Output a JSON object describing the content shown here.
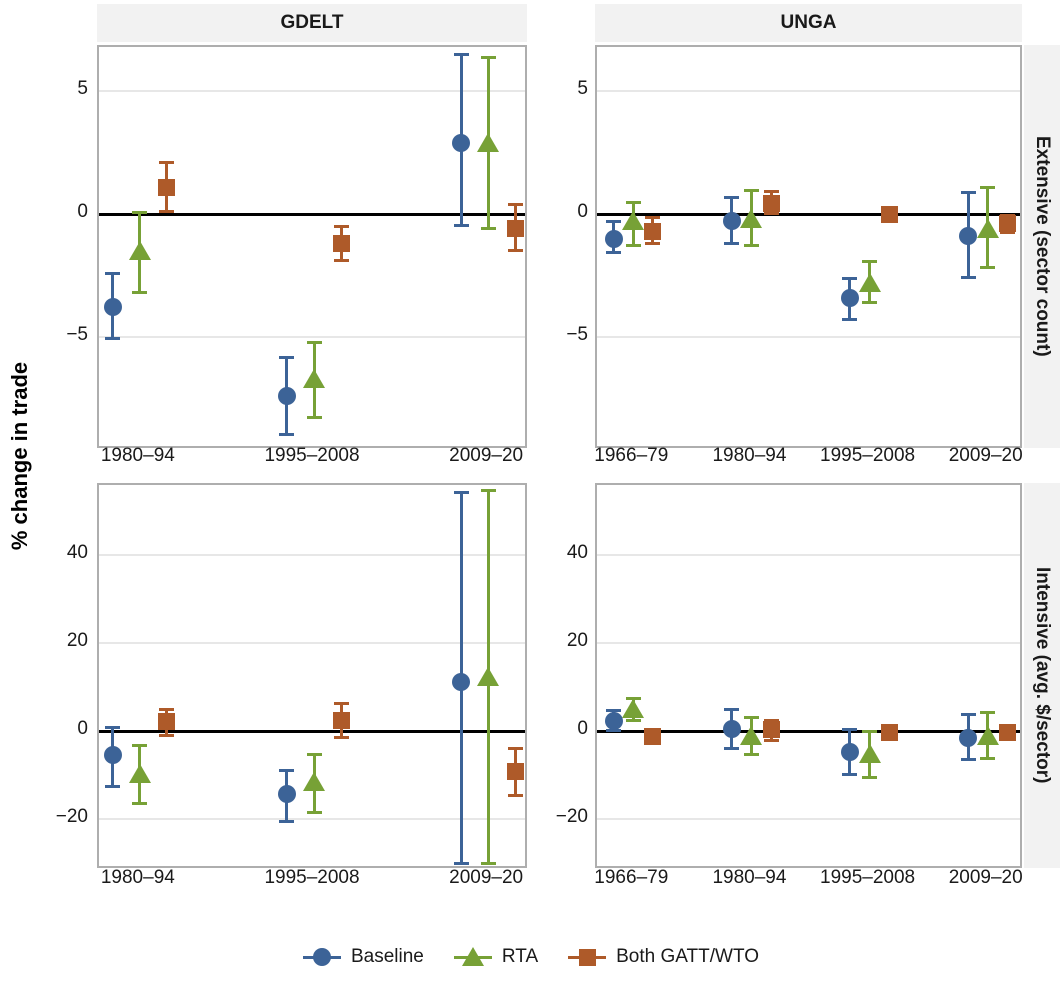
{
  "chart_data": {
    "type": "scatter",
    "style": "dodged point-range (estimate with error bars), 2x2 facet grid, horizontal reference line at 0",
    "title": "",
    "xlabel": "",
    "ylabel": "% change in trade",
    "grid": "on (light horizontal gridlines at y ticks)",
    "legend_position": "bottom center",
    "facet_columns": [
      "GDELT",
      "UNGA"
    ],
    "facet_rows": [
      "Extensive (sector count)",
      "Intensive (avg. $/sector)"
    ],
    "series": [
      {
        "name": "Baseline",
        "shape": "circle",
        "color": "#3c6397"
      },
      {
        "name": "RTA",
        "shape": "triangle",
        "color": "#77a136"
      },
      {
        "name": "Both GATT/WTO",
        "shape": "square",
        "color": "#ae5a29"
      }
    ],
    "rows": [
      {
        "label": "Extensive (sector count)",
        "yticks": [
          5,
          0,
          -5
        ],
        "ylim": [
          -9.6,
          6.8
        ]
      },
      {
        "label": "Intensive (avg. $/sector)",
        "yticks": [
          40,
          20,
          0,
          -20
        ],
        "ylim": [
          -31.5,
          56
        ]
      }
    ],
    "value_format": "[estimate, ci_low, ci_high]",
    "panels": [
      {
        "column": "GDELT",
        "row": "Extensive (sector count)",
        "categories": [
          "1980–94",
          "1995–2008",
          "2009–20"
        ],
        "estimates": {
          "Baseline": [
            [
              -3.8,
              -5.1,
              -2.4
            ],
            [
              -7.4,
              -9.0,
              -5.8
            ],
            [
              2.9,
              -0.5,
              6.5
            ]
          ],
          "RTA": [
            [
              -1.5,
              -3.2,
              0.1
            ],
            [
              -6.7,
              -8.3,
              -5.2
            ],
            [
              2.9,
              -0.6,
              6.4
            ]
          ],
          "Both GATT/WTO": [
            [
              1.1,
              0.1,
              2.1
            ],
            [
              -1.2,
              -1.9,
              -0.5
            ],
            [
              -0.6,
              -1.5,
              0.4
            ]
          ]
        }
      },
      {
        "column": "UNGA",
        "row": "Extensive (sector count)",
        "categories": [
          "1966–79",
          "1980–94",
          "1995–2008",
          "2009–20"
        ],
        "estimates": {
          "Baseline": [
            [
              -1.0,
              -1.6,
              -0.3
            ],
            [
              -0.3,
              -1.2,
              0.7
            ],
            [
              -3.4,
              -4.3,
              -2.6
            ],
            [
              -0.9,
              -2.6,
              0.9
            ]
          ],
          "RTA": [
            [
              -0.3,
              -1.3,
              0.5
            ],
            [
              -0.2,
              -1.3,
              1.0
            ],
            [
              -2.8,
              -3.6,
              -1.9
            ],
            [
              -0.6,
              -2.2,
              1.1
            ]
          ],
          "Both GATT/WTO": [
            [
              -0.7,
              -1.2,
              -0.1
            ],
            [
              0.45,
              0.0,
              0.95
            ],
            [
              0.0,
              -0.3,
              0.25
            ],
            [
              -0.4,
              -0.75,
              -0.05
            ]
          ]
        }
      },
      {
        "column": "GDELT",
        "row": "Intensive (avg. $/sector)",
        "categories": [
          "1980–94",
          "1995–2008",
          "2009–20"
        ],
        "estimates": {
          "Baseline": [
            [
              -5.4,
              -12.6,
              1.0
            ],
            [
              -14.3,
              -20.5,
              -8.8
            ],
            [
              11.3,
              -30.2,
              54.3
            ]
          ],
          "RTA": [
            [
              -9.6,
              -16.4,
              -3.0
            ],
            [
              -11.5,
              -18.5,
              -5.1
            ],
            [
              12.3,
              -30.2,
              54.9
            ]
          ],
          "Both GATT/WTO": [
            [
              2.3,
              -1.1,
              5.1
            ],
            [
              2.5,
              -1.5,
              6.4
            ],
            [
              -9.2,
              -14.6,
              -3.8
            ]
          ]
        }
      },
      {
        "column": "UNGA",
        "row": "Intensive (avg. $/sector)",
        "categories": [
          "1966–79",
          "1980–94",
          "1995–2008",
          "2009–20"
        ],
        "estimates": {
          "Baseline": [
            [
              2.4,
              0.0,
              4.8
            ],
            [
              0.5,
              -4.0,
              5.0
            ],
            [
              -4.7,
              -9.8,
              0.6
            ],
            [
              -1.4,
              -6.6,
              4.0
            ]
          ],
          "RTA": [
            [
              5.2,
              2.3,
              7.7
            ],
            [
              -1.0,
              -5.3,
              3.2
            ],
            [
              -5.1,
              -10.7,
              0.0
            ],
            [
              -1.0,
              -6.2,
              4.4
            ]
          ],
          "Both GATT/WTO": [
            [
              -1.2,
              -2.9,
              0.4
            ],
            [
              0.4,
              -2.1,
              2.7
            ],
            [
              -0.3,
              -1.3,
              0.6
            ],
            [
              -0.2,
              -1.2,
              1.0
            ]
          ]
        }
      }
    ],
    "colors": {
      "strip_background": "#f2f2f2",
      "panel_border": "#aeaeae",
      "gridline": "#e7e7e7",
      "zero_line": "#000000",
      "text": "#1a1a1a"
    },
    "legend_labels": [
      "Baseline",
      "RTA",
      "Both GATT/WTO"
    ]
  }
}
